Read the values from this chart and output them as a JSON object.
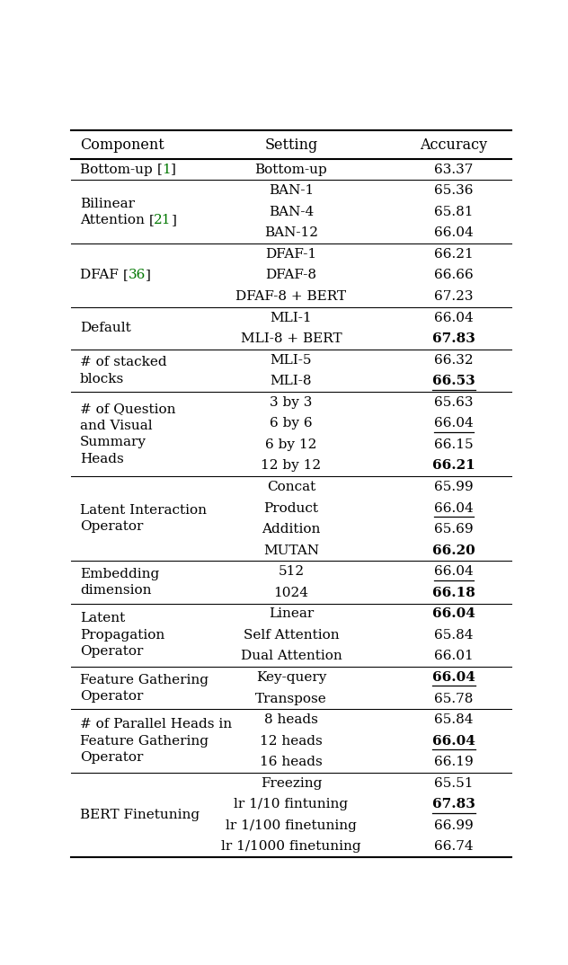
{
  "header": [
    "Component",
    "Setting",
    "Accuracy"
  ],
  "sections": [
    {
      "component_lines": [
        "Bottom-up [1]"
      ],
      "citation_num": "1",
      "rows": [
        {
          "setting": "Bottom-up",
          "accuracy": "63.37",
          "bold": false,
          "underline": false
        }
      ]
    },
    {
      "component_lines": [
        "Bilinear",
        "Attention [21]"
      ],
      "citation_num": "21",
      "rows": [
        {
          "setting": "BAN-1",
          "accuracy": "65.36",
          "bold": false,
          "underline": false
        },
        {
          "setting": "BAN-4",
          "accuracy": "65.81",
          "bold": false,
          "underline": false
        },
        {
          "setting": "BAN-12",
          "accuracy": "66.04",
          "bold": false,
          "underline": false
        }
      ]
    },
    {
      "component_lines": [
        "DFAF [36]"
      ],
      "citation_num": "36",
      "rows": [
        {
          "setting": "DFAF-1",
          "accuracy": "66.21",
          "bold": false,
          "underline": false
        },
        {
          "setting": "DFAF-8",
          "accuracy": "66.66",
          "bold": false,
          "underline": false
        },
        {
          "setting": "DFAF-8 + BERT",
          "accuracy": "67.23",
          "bold": false,
          "underline": false
        }
      ]
    },
    {
      "component_lines": [
        "Default"
      ],
      "citation_num": null,
      "rows": [
        {
          "setting": "MLI-1",
          "accuracy": "66.04",
          "bold": false,
          "underline": false
        },
        {
          "setting": "MLI-8 + BERT",
          "accuracy": "67.83",
          "bold": true,
          "underline": false
        }
      ]
    },
    {
      "component_lines": [
        "# of stacked",
        "blocks"
      ],
      "citation_num": null,
      "rows": [
        {
          "setting": "MLI-5",
          "accuracy": "66.32",
          "bold": false,
          "underline": false
        },
        {
          "setting": "MLI-8",
          "accuracy": "66.53",
          "bold": true,
          "underline": true
        }
      ]
    },
    {
      "component_lines": [
        "# of Question",
        "and Visual",
        "Summary",
        "Heads"
      ],
      "citation_num": null,
      "rows": [
        {
          "setting": "3 by 3",
          "accuracy": "65.63",
          "bold": false,
          "underline": false
        },
        {
          "setting": "6 by 6",
          "accuracy": "66.04",
          "bold": false,
          "underline": true
        },
        {
          "setting": "6 by 12",
          "accuracy": "66.15",
          "bold": false,
          "underline": false
        },
        {
          "setting": "12 by 12",
          "accuracy": "66.21",
          "bold": true,
          "underline": false
        }
      ]
    },
    {
      "component_lines": [
        "Latent Interaction",
        "Operator"
      ],
      "citation_num": null,
      "rows": [
        {
          "setting": "Concat",
          "accuracy": "65.99",
          "bold": false,
          "underline": false
        },
        {
          "setting": "Product",
          "accuracy": "66.04",
          "bold": false,
          "underline": true
        },
        {
          "setting": "Addition",
          "accuracy": "65.69",
          "bold": false,
          "underline": false
        },
        {
          "setting": "MUTAN",
          "accuracy": "66.20",
          "bold": true,
          "underline": false
        }
      ]
    },
    {
      "component_lines": [
        "Embedding",
        "dimension"
      ],
      "citation_num": null,
      "rows": [
        {
          "setting": "512",
          "accuracy": "66.04",
          "bold": false,
          "underline": true
        },
        {
          "setting": "1024",
          "accuracy": "66.18",
          "bold": true,
          "underline": false
        }
      ]
    },
    {
      "component_lines": [
        "Latent",
        "Propagation",
        "Operator"
      ],
      "citation_num": null,
      "rows": [
        {
          "setting": "Linear",
          "accuracy": "66.04",
          "bold": true,
          "underline": false
        },
        {
          "setting": "Self Attention",
          "accuracy": "65.84",
          "bold": false,
          "underline": false
        },
        {
          "setting": "Dual Attention",
          "accuracy": "66.01",
          "bold": false,
          "underline": false
        }
      ]
    },
    {
      "component_lines": [
        "Feature Gathering",
        "Operator"
      ],
      "citation_num": null,
      "rows": [
        {
          "setting": "Key-query",
          "accuracy": "66.04",
          "bold": true,
          "underline": true
        },
        {
          "setting": "Transpose",
          "accuracy": "65.78",
          "bold": false,
          "underline": false
        }
      ]
    },
    {
      "component_lines": [
        "# of Parallel Heads in",
        "Feature Gathering",
        "Operator"
      ],
      "citation_num": null,
      "rows": [
        {
          "setting": "8 heads",
          "accuracy": "65.84",
          "bold": false,
          "underline": false
        },
        {
          "setting": "12 heads",
          "accuracy": "66.04",
          "bold": true,
          "underline": true
        },
        {
          "setting": "16 heads",
          "accuracy": "66.19",
          "bold": false,
          "underline": false
        }
      ]
    },
    {
      "component_lines": [
        "BERT Finetuning"
      ],
      "citation_num": null,
      "rows": [
        {
          "setting": "Freezing",
          "accuracy": "65.51",
          "bold": false,
          "underline": false
        },
        {
          "setting": "lr 1/10 fintuning",
          "accuracy": "67.83",
          "bold": true,
          "underline": true
        },
        {
          "setting": "lr 1/100 finetuning",
          "accuracy": "66.99",
          "bold": false,
          "underline": false
        },
        {
          "setting": "lr 1/1000 finetuning",
          "accuracy": "66.74",
          "bold": false,
          "underline": false
        }
      ]
    }
  ],
  "col_comp": 0.02,
  "col_setting": 0.5,
  "col_accuracy": 0.87,
  "thick_line_lw": 1.5,
  "thin_line_lw": 0.75,
  "font_size": 11.0,
  "header_font_size": 11.5,
  "background_color": "#ffffff",
  "text_color": "#000000",
  "green_color": "#007700"
}
